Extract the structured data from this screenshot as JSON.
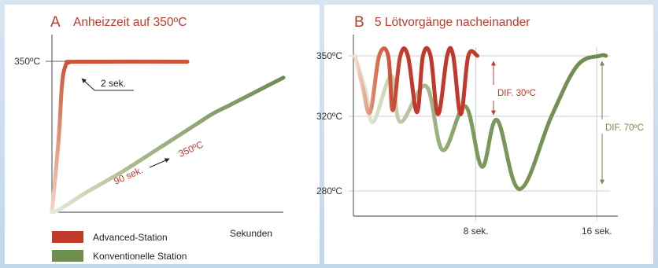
{
  "colors": {
    "advanced": "#c0392b",
    "advanced_light": "#e08a6e",
    "conventional": "#6f8f50",
    "conventional_light": "#c8d3b4",
    "axis": "#555555",
    "title": "#c0392b"
  },
  "chart_data": [
    {
      "type": "line",
      "panel_letter": "A",
      "title": "Anheizzeit auf 350ºC",
      "xlabel": "Sekunden",
      "ylabel": "",
      "y_tick_label": "350ºC",
      "grid": false,
      "annotations": [
        "2 sek.",
        "90 sek.",
        "350ºC"
      ],
      "series": [
        {
          "name": "Advanced-Station",
          "x": [
            0,
            1,
            1.5,
            2,
            2.5,
            4,
            20
          ],
          "y": [
            20,
            180,
            300,
            340,
            348,
            350,
            350
          ]
        },
        {
          "name": "Konventionelle Station",
          "x": [
            0,
            2,
            5,
            10,
            20,
            40,
            60,
            80,
            90,
            100,
            120,
            130
          ],
          "y": [
            20,
            22,
            28,
            40,
            65,
            110,
            160,
            210,
            235,
            255,
            295,
            315
          ]
        }
      ]
    },
    {
      "type": "line",
      "panel_letter": "B",
      "title": "5 Lötvorgänge nacheinander",
      "ylabel": "",
      "y_ticks": [
        "350ºC",
        "320ºC",
        "280ºC"
      ],
      "y_tick_values": [
        350,
        320,
        280
      ],
      "x_ticks": [
        "8 sek.",
        "16 sek."
      ],
      "x_tick_values": [
        8,
        16
      ],
      "ylim": [
        270,
        358
      ],
      "xlim": [
        0,
        17.5
      ],
      "grid": true,
      "annotations": [
        "DIF. 30ºC",
        "DIF. 70ºC"
      ],
      "series": [
        {
          "name": "Advanced-Station",
          "x": [
            0,
            0.5,
            1.0,
            1.6,
            2.2,
            2.5,
            3.0,
            3.5,
            4.1,
            4.5,
            5.0,
            5.5,
            6.1,
            6.5,
            7.0,
            7.5,
            8.1
          ],
          "y": [
            350,
            335,
            322,
            350,
            350,
            323,
            350,
            350,
            322,
            350,
            350,
            321,
            350,
            350,
            321,
            350,
            350
          ]
        },
        {
          "name": "Konventionelle Station",
          "x": [
            0,
            0.7,
            1.2,
            2.4,
            3.0,
            4.7,
            5.8,
            7.3,
            8.4,
            9.4,
            10.9,
            13.0,
            14.7,
            16.2,
            16.6
          ],
          "y": [
            350,
            333,
            317,
            340,
            317,
            335,
            302,
            325,
            293,
            318,
            281,
            320,
            345,
            350,
            350
          ]
        }
      ]
    }
  ],
  "legend": [
    {
      "label": "Advanced-Station"
    },
    {
      "label": "Konventionelle Station"
    }
  ]
}
